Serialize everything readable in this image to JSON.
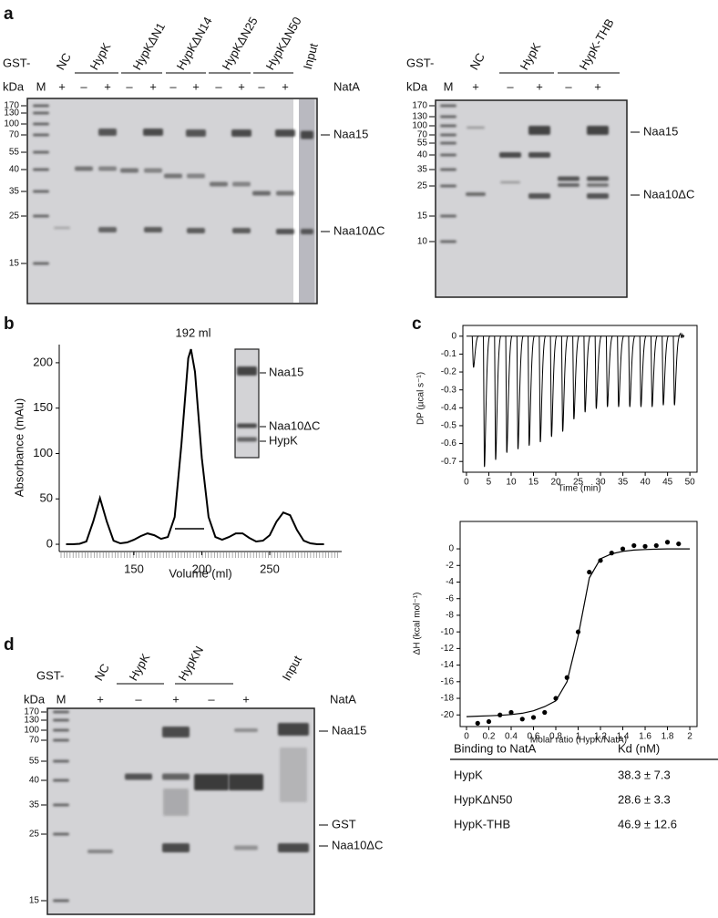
{
  "panel_labels": [
    "a",
    "b",
    "c",
    "d"
  ],
  "gels": [
    {
      "prefix": "GST-",
      "kda": "kDa",
      "marker_lane": "M",
      "headers": [
        "NC",
        "HypK",
        "HypKΔN1",
        "HypKΔN14",
        "HypKΔN25",
        "HypKΔN50",
        "Input"
      ],
      "signs": [
        "+",
        "–",
        "+",
        "–",
        "+",
        "–",
        "+",
        "–",
        "+",
        "–",
        "+"
      ],
      "treatment": "NatA",
      "markers": [
        170,
        130,
        100,
        70,
        55,
        40,
        35,
        25,
        15
      ],
      "band_labels": [
        "Naa15",
        "Naa10ΔC"
      ]
    },
    {
      "prefix": "GST-",
      "kda": "kDa",
      "marker_lane": "M",
      "headers": [
        "NC",
        "HypK",
        "HypK-THB"
      ],
      "signs": [
        "+",
        "–",
        "+",
        "–",
        "+"
      ],
      "markers": [
        170,
        130,
        100,
        70,
        55,
        40,
        35,
        25,
        15,
        10
      ],
      "band_labels": [
        "Naa15",
        "Naa10ΔC"
      ]
    },
    {
      "prefix": "GST-",
      "kda": "kDa",
      "marker_lane": "M",
      "headers": [
        "NC",
        "HypK",
        "HypKN",
        "Input"
      ],
      "signs": [
        "+",
        "–",
        "+",
        "–",
        "+"
      ],
      "treatment": "NatA",
      "markers": [
        170,
        130,
        100,
        70,
        55,
        40,
        35,
        25,
        15
      ],
      "band_labels": [
        "Naa15",
        "GST",
        "Naa10ΔC"
      ]
    }
  ],
  "inset_gel": {
    "band_labels": [
      "Naa15",
      "Naa10ΔC",
      "HypK"
    ]
  },
  "chart_data": [
    {
      "type": "line",
      "annotation": "192 ml",
      "xlabel": "Volume (ml)",
      "ylabel": "Absorbance (mAu)",
      "color": "#000000",
      "x": [
        100,
        105,
        110,
        115,
        120,
        125,
        130,
        135,
        140,
        145,
        150,
        155,
        160,
        165,
        170,
        175,
        180,
        185,
        190,
        192,
        195,
        200,
        205,
        210,
        215,
        220,
        225,
        230,
        235,
        240,
        245,
        250,
        255,
        260,
        265,
        270,
        275,
        280,
        285,
        290
      ],
      "values": [
        0,
        0,
        0.5,
        3,
        25,
        51,
        25,
        4,
        1,
        2,
        5,
        9,
        12,
        10,
        6,
        8,
        30,
        110,
        205,
        215,
        190,
        95,
        30,
        8,
        5,
        8,
        12,
        12,
        7,
        3,
        4,
        10,
        25,
        35,
        32,
        16,
        4,
        1,
        0,
        0
      ],
      "xlim": [
        95,
        303
      ],
      "ylim": [
        -8,
        220
      ],
      "xticks": [
        150,
        200,
        250
      ],
      "yticks": [
        0,
        50,
        100,
        150,
        200
      ]
    },
    {
      "type": "thermogram",
      "xlabel": "Time (min)",
      "ylabel": "DP (µcal s⁻¹)",
      "color": "#000000",
      "x": [
        1.5,
        4,
        6.5,
        9,
        11.5,
        14,
        16.5,
        19,
        21.5,
        24,
        26.5,
        29,
        31.5,
        34,
        36.5,
        39,
        41.5,
        44,
        46.5
      ],
      "values": [
        -0.15,
        -0.72,
        -0.68,
        -0.64,
        -0.62,
        -0.6,
        -0.58,
        -0.55,
        -0.52,
        -0.45,
        -0.41,
        -0.39,
        -0.38,
        -0.38,
        -0.38,
        -0.38,
        -0.38,
        -0.37,
        -0.37
      ],
      "xlim": [
        -0.8,
        51.6
      ],
      "ylim": [
        -0.76,
        0.06
      ],
      "xticks": [
        0,
        5,
        10,
        15,
        20,
        25,
        30,
        35,
        40,
        45,
        50
      ],
      "yticks": [
        0,
        -0.1,
        -0.2,
        -0.3,
        -0.4,
        -0.5,
        -0.6,
        -0.7
      ]
    },
    {
      "type": "scatter",
      "xlabel": "Molar ratio (HypK/NatA)",
      "ylabel": "ΔH (kcal mol⁻¹)",
      "color": "#000000",
      "x": [
        0.1,
        0.2,
        0.3,
        0.4,
        0.5,
        0.6,
        0.7,
        0.8,
        0.9,
        1.0,
        1.1,
        1.2,
        1.3,
        1.4,
        1.5,
        1.6,
        1.7,
        1.8,
        1.9
      ],
      "values": [
        -21,
        -20.8,
        -20,
        -19.7,
        -20.5,
        -20.3,
        -19.7,
        -18,
        -15.5,
        -10,
        -2.8,
        -1.4,
        -0.5,
        0,
        0.4,
        0.3,
        0.4,
        0.8,
        0.6
      ],
      "fit": {
        "x": [
          0,
          0.1,
          0.2,
          0.3,
          0.4,
          0.5,
          0.6,
          0.7,
          0.8,
          0.9,
          1.0,
          1.1,
          1.2,
          1.3,
          1.4,
          1.5,
          1.6,
          1.7,
          1.8,
          1.9,
          2.0
        ],
        "values": [
          -20.2,
          -20.15,
          -20.1,
          -20.05,
          -19.95,
          -19.8,
          -19.5,
          -19,
          -18.3,
          -16,
          -10.5,
          -3.5,
          -1.2,
          -0.6,
          -0.3,
          -0.15,
          -0.08,
          -0.04,
          0,
          0,
          0
        ]
      },
      "xlim": [
        -0.057,
        2.065
      ],
      "ylim": [
        -21.4,
        3.3
      ],
      "xticks": [
        0,
        0.2,
        0.4,
        0.6,
        0.8,
        1,
        1.2,
        1.4,
        1.6,
        1.8,
        2
      ],
      "yticks": [
        0,
        -2,
        -4,
        -6,
        -8,
        -10,
        -12,
        -14,
        -16,
        -18,
        -20
      ]
    }
  ],
  "table": {
    "header": [
      "Binding to NatA",
      "Kd (nM)"
    ],
    "rows": [
      [
        "HypK",
        "38.3 ± 7.3"
      ],
      [
        "HypKΔN50",
        "28.6 ± 3.3"
      ],
      [
        "HypK-THB",
        "46.9 ± 12.6"
      ]
    ]
  }
}
